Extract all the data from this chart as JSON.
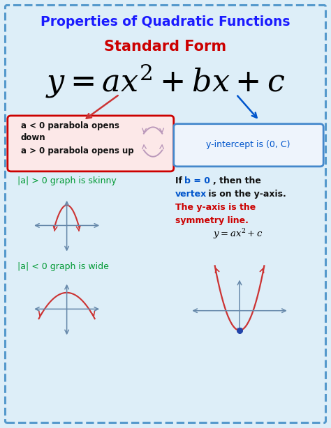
{
  "title": "Properties of Quadratic Functions",
  "subtitle": "Standard Form",
  "box1_line1": "a < 0 parabola opens",
  "box1_line2": "down",
  "box1_line3": "a > 0 parabola opens up",
  "box2_text": "y-intercept is (0, C)",
  "label_skinny": "|a| > 0 graph is skinny",
  "label_wide": "|a| < 0 graph is wide",
  "b0_line1_pre": "If ",
  "b0_line1_bold": "b = 0",
  "b0_line1_post": ", then the",
  "b0_line2_blue": "vertex",
  "b0_line2_post": " is on the y-axis.",
  "b0_line3": "The y-axis is the",
  "b0_line4": "symmetry line.",
  "bg_color": "#ddeef8",
  "title_color": "#1a1aff",
  "subtitle_color": "#cc0000",
  "box1_border": "#cc0000",
  "box1_bg": "#fce8e8",
  "box2_border": "#4488cc",
  "box2_bg": "#eef4fc",
  "green_text": "#009933",
  "blue_text": "#0055cc",
  "red_text": "#cc0000",
  "black_text": "#111111",
  "outer_border": "#5599cc",
  "parabola_color": "#cc3333",
  "axis_color": "#6688aa",
  "mini_parabola_color": "#bb99bb"
}
